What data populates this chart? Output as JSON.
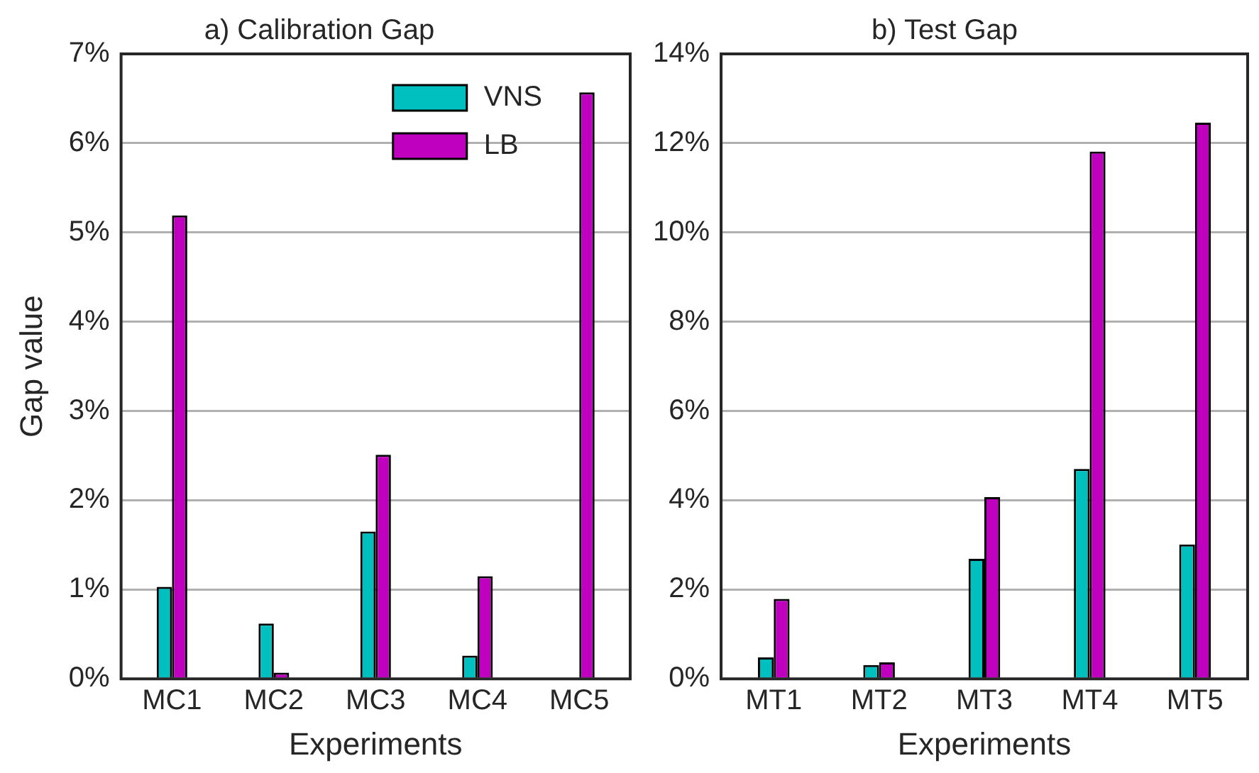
{
  "chart_data": [
    {
      "type": "bar",
      "title": "a) Calibration Gap",
      "xlabel": "Experiments",
      "ylabel": "Gap value",
      "categories": [
        "MC1",
        "MC2",
        "MC3",
        "MC4",
        "MC5"
      ],
      "series": [
        {
          "name": "VNS",
          "color": "#00bfbf",
          "values": [
            1.03,
            0.62,
            1.65,
            0.26,
            0
          ]
        },
        {
          "name": "LB",
          "color": "#bf00bf",
          "values": [
            5.19,
            0.07,
            2.51,
            1.15,
            6.57
          ]
        }
      ],
      "ylim": [
        0,
        7
      ],
      "yticks": [
        {
          "value": 0,
          "label": "0%"
        },
        {
          "value": 1,
          "label": "1%"
        },
        {
          "value": 2,
          "label": "2%"
        },
        {
          "value": 3,
          "label": "3%"
        },
        {
          "value": 4,
          "label": "4%"
        },
        {
          "value": 5,
          "label": "5%"
        },
        {
          "value": 6,
          "label": "6%"
        },
        {
          "value": 7,
          "label": "7%"
        }
      ],
      "grid": "y",
      "legend": "top right"
    },
    {
      "type": "bar",
      "title": "b) Test Gap",
      "xlabel": "Experiments",
      "categories": [
        "MT1",
        "MT2",
        "MT3",
        "MT4",
        "MT5"
      ],
      "series": [
        {
          "color": "#00bfbf",
          "values": [
            0.48,
            0.31,
            2.69,
            4.7,
            3.01
          ]
        },
        {
          "color": "#bf00bf",
          "values": [
            1.79,
            0.37,
            4.07,
            11.81,
            12.46
          ]
        }
      ],
      "ylim": [
        0,
        14
      ],
      "yticks": [
        {
          "value": 0,
          "label": "0%"
        },
        {
          "value": 2,
          "label": "2%"
        },
        {
          "value": 4,
          "label": "4%"
        },
        {
          "value": 6,
          "label": "6%"
        },
        {
          "value": 8,
          "label": "8%"
        },
        {
          "value": 10,
          "label": "10%"
        },
        {
          "value": 12,
          "label": "12%"
        },
        {
          "value": 14,
          "label": "14%"
        }
      ],
      "grid": "y"
    }
  ]
}
